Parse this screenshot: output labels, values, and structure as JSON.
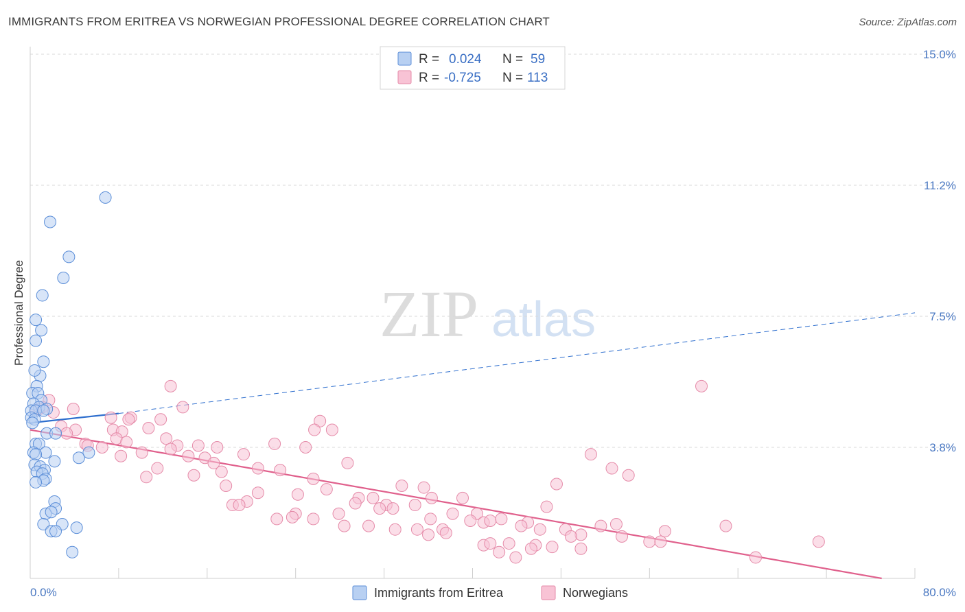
{
  "header": {
    "title": "IMMIGRANTS FROM ERITREA VS NORWEGIAN PROFESSIONAL DEGREE CORRELATION CHART",
    "source": "Source: ZipAtlas.com"
  },
  "watermark": {
    "zip": "ZIP",
    "atlas": "atlas"
  },
  "colors": {
    "eritrea_fill": "#b8d0f2",
    "eritrea_stroke": "#5b8ed8",
    "eritrea_line": "#2f6fce",
    "norway_fill": "#f8c3d5",
    "norway_stroke": "#e58aa8",
    "norway_line": "#e0608c",
    "value_text": "#3a6fc4",
    "grid": "#d9d9d9"
  },
  "stats": [
    {
      "r_label": "R =",
      "r_value": "0.024",
      "n_label": "N =",
      "n_value": "59"
    },
    {
      "r_label": "R =",
      "r_value": "-0.725",
      "n_label": "N =",
      "n_value": "113"
    }
  ],
  "chart_data": {
    "type": "scatter",
    "title": "IMMIGRANTS FROM ERITREA VS NORWEGIAN PROFESSIONAL DEGREE CORRELATION CHART",
    "xlabel": "",
    "ylabel": "Professional Degree",
    "xlim": [
      0,
      80
    ],
    "ylim": [
      0,
      15.0
    ],
    "x_tick_labels": [
      "0.0%",
      "80.0%"
    ],
    "y_ticks": [
      3.75,
      7.5,
      11.25,
      15.0
    ],
    "y_tick_labels": [
      "3.8%",
      "7.5%",
      "11.2%",
      "15.0%"
    ],
    "legend_position": "bottom-center",
    "series": [
      {
        "name": "Immigrants from Eritrea",
        "r": 0.024,
        "n": 59,
        "trend_solid": [
          [
            0,
            4.45
          ],
          [
            8,
            4.72
          ]
        ],
        "trend_dashed": [
          [
            8,
            4.72
          ],
          [
            80,
            7.6
          ]
        ],
        "points": [
          [
            6.8,
            10.9
          ],
          [
            1.8,
            10.2
          ],
          [
            3.5,
            9.2
          ],
          [
            3.0,
            8.6
          ],
          [
            1.1,
            8.1
          ],
          [
            0.5,
            7.4
          ],
          [
            1.0,
            7.1
          ],
          [
            0.5,
            6.8
          ],
          [
            1.2,
            6.2
          ],
          [
            0.9,
            5.8
          ],
          [
            0.4,
            5.95
          ],
          [
            0.6,
            5.5
          ],
          [
            0.2,
            5.3
          ],
          [
            0.7,
            5.3
          ],
          [
            1.0,
            5.1
          ],
          [
            0.3,
            5.0
          ],
          [
            0.8,
            4.9
          ],
          [
            1.5,
            4.85
          ],
          [
            0.1,
            4.8
          ],
          [
            0.5,
            4.8
          ],
          [
            1.2,
            4.8
          ],
          [
            0.1,
            4.6
          ],
          [
            0.4,
            4.55
          ],
          [
            0.2,
            4.45
          ],
          [
            1.5,
            4.15
          ],
          [
            2.3,
            4.15
          ],
          [
            0.5,
            3.85
          ],
          [
            0.8,
            3.85
          ],
          [
            0.3,
            3.6
          ],
          [
            1.4,
            3.6
          ],
          [
            0.5,
            3.55
          ],
          [
            4.4,
            3.45
          ],
          [
            5.3,
            3.6
          ],
          [
            2.2,
            3.35
          ],
          [
            0.4,
            3.25
          ],
          [
            0.9,
            3.2
          ],
          [
            1.3,
            3.1
          ],
          [
            0.6,
            3.05
          ],
          [
            1.1,
            3.0
          ],
          [
            1.4,
            2.85
          ],
          [
            1.2,
            2.8
          ],
          [
            0.5,
            2.75
          ],
          [
            2.2,
            2.2
          ],
          [
            2.3,
            2.0
          ],
          [
            1.4,
            1.85
          ],
          [
            1.9,
            1.9
          ],
          [
            1.2,
            1.55
          ],
          [
            2.9,
            1.55
          ],
          [
            4.2,
            1.45
          ],
          [
            1.9,
            1.35
          ],
          [
            2.3,
            1.35
          ],
          [
            3.8,
            0.75
          ]
        ]
      },
      {
        "name": "Norwegians",
        "r": -0.725,
        "n": 113,
        "trend_solid": [
          [
            0,
            4.25
          ],
          [
            77,
            0.0
          ]
        ],
        "points": [
          [
            12.7,
            5.5
          ],
          [
            60.7,
            5.5
          ],
          [
            1.7,
            5.1
          ],
          [
            3.9,
            4.85
          ],
          [
            1.1,
            4.9
          ],
          [
            0.8,
            4.85
          ],
          [
            0.5,
            4.8
          ],
          [
            2.1,
            4.75
          ],
          [
            13.8,
            4.9
          ],
          [
            7.3,
            4.6
          ],
          [
            9.1,
            4.6
          ],
          [
            8.9,
            4.55
          ],
          [
            11.8,
            4.55
          ],
          [
            26.2,
            4.5
          ],
          [
            2.8,
            4.35
          ],
          [
            10.7,
            4.3
          ],
          [
            4.1,
            4.25
          ],
          [
            7.5,
            4.25
          ],
          [
            8.3,
            4.2
          ],
          [
            25.7,
            4.25
          ],
          [
            27.3,
            4.25
          ],
          [
            3.3,
            4.15
          ],
          [
            12.3,
            4.0
          ],
          [
            7.8,
            4.0
          ],
          [
            8.7,
            3.9
          ],
          [
            5.0,
            3.85
          ],
          [
            5.2,
            3.8
          ],
          [
            13.3,
            3.8
          ],
          [
            22.1,
            3.85
          ],
          [
            15.2,
            3.8
          ],
          [
            12.7,
            3.7
          ],
          [
            16.9,
            3.75
          ],
          [
            6.5,
            3.75
          ],
          [
            24.9,
            3.75
          ],
          [
            10.1,
            3.6
          ],
          [
            8.2,
            3.5
          ],
          [
            14.3,
            3.5
          ],
          [
            15.8,
            3.45
          ],
          [
            16.6,
            3.3
          ],
          [
            19.3,
            3.55
          ],
          [
            28.7,
            3.3
          ],
          [
            50.7,
            3.55
          ],
          [
            11.5,
            3.15
          ],
          [
            17.3,
            3.05
          ],
          [
            20.6,
            3.15
          ],
          [
            22.6,
            3.1
          ],
          [
            52.6,
            3.15
          ],
          [
            54.1,
            2.95
          ],
          [
            10.5,
            2.9
          ],
          [
            14.8,
            2.95
          ],
          [
            25.6,
            2.85
          ],
          [
            17.7,
            2.65
          ],
          [
            33.6,
            2.65
          ],
          [
            35.6,
            2.6
          ],
          [
            26.8,
            2.55
          ],
          [
            47.6,
            2.7
          ],
          [
            20.6,
            2.45
          ],
          [
            24.2,
            2.4
          ],
          [
            29.7,
            2.3
          ],
          [
            31.0,
            2.3
          ],
          [
            36.3,
            2.3
          ],
          [
            39.1,
            2.3
          ],
          [
            19.6,
            2.2
          ],
          [
            18.3,
            2.1
          ],
          [
            18.9,
            2.1
          ],
          [
            29.4,
            2.15
          ],
          [
            32.2,
            2.1
          ],
          [
            34.8,
            2.1
          ],
          [
            31.6,
            2.0
          ],
          [
            32.8,
            2.0
          ],
          [
            46.7,
            2.05
          ],
          [
            24.0,
            1.85
          ],
          [
            23.7,
            1.75
          ],
          [
            27.9,
            1.85
          ],
          [
            38.2,
            1.85
          ],
          [
            40.4,
            1.85
          ],
          [
            22.3,
            1.7
          ],
          [
            25.6,
            1.7
          ],
          [
            36.2,
            1.7
          ],
          [
            39.8,
            1.65
          ],
          [
            41.0,
            1.6
          ],
          [
            41.6,
            1.65
          ],
          [
            42.6,
            1.7
          ],
          [
            45.0,
            1.6
          ],
          [
            28.4,
            1.5
          ],
          [
            30.6,
            1.5
          ],
          [
            44.4,
            1.5
          ],
          [
            53.0,
            1.55
          ],
          [
            51.6,
            1.5
          ],
          [
            62.9,
            1.5
          ],
          [
            33.0,
            1.4
          ],
          [
            35.0,
            1.4
          ],
          [
            37.3,
            1.4
          ],
          [
            46.1,
            1.4
          ],
          [
            48.4,
            1.4
          ],
          [
            57.4,
            1.35
          ],
          [
            36.0,
            1.25
          ],
          [
            37.6,
            1.3
          ],
          [
            49.8,
            1.25
          ],
          [
            53.5,
            1.2
          ],
          [
            56.0,
            1.05
          ],
          [
            57.0,
            1.05
          ],
          [
            48.9,
            1.2
          ],
          [
            71.3,
            1.05
          ],
          [
            41.0,
            0.95
          ],
          [
            41.6,
            1.0
          ],
          [
            43.3,
            1.0
          ],
          [
            45.7,
            0.95
          ],
          [
            47.2,
            0.9
          ],
          [
            49.8,
            0.85
          ],
          [
            45.3,
            0.85
          ],
          [
            42.4,
            0.75
          ],
          [
            43.9,
            0.6
          ],
          [
            65.6,
            0.6
          ]
        ]
      }
    ]
  },
  "legend": [
    {
      "label": "Immigrants from Eritrea"
    },
    {
      "label": "Norwegians"
    }
  ]
}
